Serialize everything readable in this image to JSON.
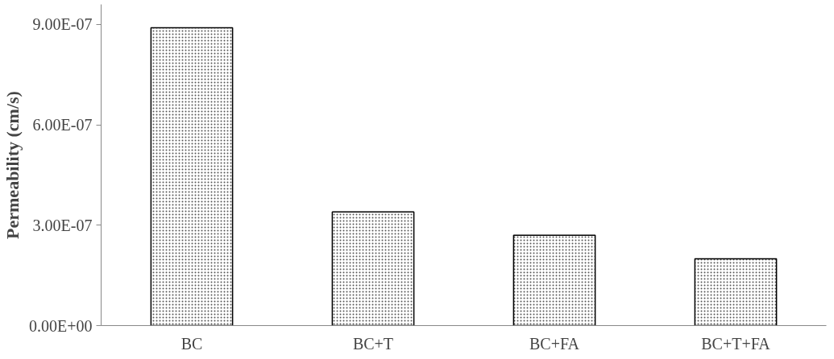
{
  "chart_data": {
    "type": "bar",
    "ylabel": "Permeability (cm/s)",
    "categories": [
      "BC",
      "BC+T",
      "BC+FA",
      "BC+T+FA"
    ],
    "values": [
      8.9e-07,
      3.4e-07,
      2.7e-07,
      2e-07
    ],
    "color": "#ffffff",
    "ylim": [
      0,
      9.6e-07
    ],
    "yticks": [
      {
        "value": 0,
        "label": "0.00E+00"
      },
      {
        "value": 3e-07,
        "label": "3.00E-07"
      },
      {
        "value": 6e-07,
        "label": "6.00E-07"
      },
      {
        "value": 9e-07,
        "label": "9.00E-07"
      }
    ],
    "grid": false
  }
}
